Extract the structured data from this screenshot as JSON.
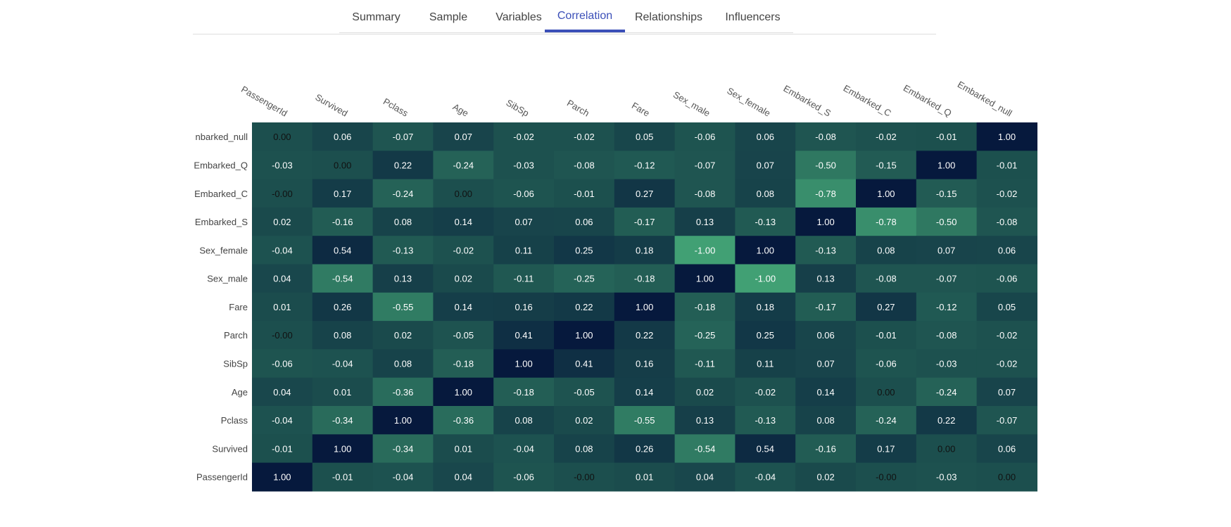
{
  "tabs": [
    {
      "label": "Summary",
      "active": false
    },
    {
      "label": "Sample",
      "active": false
    },
    {
      "label": "Variables",
      "active": false
    },
    {
      "label": "Correlation",
      "active": true
    },
    {
      "label": "Relationships",
      "active": false
    },
    {
      "label": "Influencers",
      "active": false
    }
  ],
  "colors": {
    "active_tab": "#3b4fb8",
    "scale_low": "#41a074",
    "scale_mid": "#1c4f4e",
    "scale_high": "#06193d"
  },
  "chart_data": {
    "type": "heatmap",
    "x_labels": [
      "PassengerId",
      "Survived",
      "Pclass",
      "Age",
      "SibSp",
      "Parch",
      "Fare",
      "Sex_male",
      "Sex_female",
      "Embarked_S",
      "Embarked_C",
      "Embarked_Q",
      "Embarked_null"
    ],
    "y_labels": [
      "Embarked_null",
      "Embarked_Q",
      "Embarked_C",
      "Embarked_S",
      "Sex_female",
      "Sex_male",
      "Fare",
      "Parch",
      "SibSp",
      "Age",
      "Pclass",
      "Survived",
      "PassengerId"
    ],
    "y_tick_labels": [
      "nbarked_null",
      "Embarked_Q",
      "Embarked_C",
      "Embarked_S",
      "Sex_female",
      "Sex_male",
      "Fare",
      "Parch",
      "SibSp",
      "Age",
      "Pclass",
      "Survived",
      "PassengerId"
    ],
    "value_labels": [
      [
        "0.00",
        "0.06",
        "-0.07",
        "0.07",
        "-0.02",
        "-0.02",
        "0.05",
        "-0.06",
        "0.06",
        "-0.08",
        "-0.02",
        "-0.01",
        "1.00"
      ],
      [
        "-0.03",
        "0.00",
        "0.22",
        "-0.24",
        "-0.03",
        "-0.08",
        "-0.12",
        "-0.07",
        "0.07",
        "-0.50",
        "-0.15",
        "1.00",
        "-0.01"
      ],
      [
        "-0.00",
        "0.17",
        "-0.24",
        "0.00",
        "-0.06",
        "-0.01",
        "0.27",
        "-0.08",
        "0.08",
        "-0.78",
        "1.00",
        "-0.15",
        "-0.02"
      ],
      [
        "0.02",
        "-0.16",
        "0.08",
        "0.14",
        "0.07",
        "0.06",
        "-0.17",
        "0.13",
        "-0.13",
        "1.00",
        "-0.78",
        "-0.50",
        "-0.08"
      ],
      [
        "-0.04",
        "0.54",
        "-0.13",
        "-0.02",
        "0.11",
        "0.25",
        "0.18",
        "-1.00",
        "1.00",
        "-0.13",
        "0.08",
        "0.07",
        "0.06"
      ],
      [
        "0.04",
        "-0.54",
        "0.13",
        "0.02",
        "-0.11",
        "-0.25",
        "-0.18",
        "1.00",
        "-1.00",
        "0.13",
        "-0.08",
        "-0.07",
        "-0.06"
      ],
      [
        "0.01",
        "0.26",
        "-0.55",
        "0.14",
        "0.16",
        "0.22",
        "1.00",
        "-0.18",
        "0.18",
        "-0.17",
        "0.27",
        "-0.12",
        "0.05"
      ],
      [
        "-0.00",
        "0.08",
        "0.02",
        "-0.05",
        "0.41",
        "1.00",
        "0.22",
        "-0.25",
        "0.25",
        "0.06",
        "-0.01",
        "-0.08",
        "-0.02"
      ],
      [
        "-0.06",
        "-0.04",
        "0.08",
        "-0.18",
        "1.00",
        "0.41",
        "0.16",
        "-0.11",
        "0.11",
        "0.07",
        "-0.06",
        "-0.03",
        "-0.02"
      ],
      [
        "0.04",
        "0.01",
        "-0.36",
        "1.00",
        "-0.18",
        "-0.05",
        "0.14",
        "0.02",
        "-0.02",
        "0.14",
        "0.00",
        "-0.24",
        "0.07"
      ],
      [
        "-0.04",
        "-0.34",
        "1.00",
        "-0.36",
        "0.08",
        "0.02",
        "-0.55",
        "0.13",
        "-0.13",
        "0.08",
        "-0.24",
        "0.22",
        "-0.07"
      ],
      [
        "-0.01",
        "1.00",
        "-0.34",
        "0.01",
        "-0.04",
        "0.08",
        "0.26",
        "-0.54",
        "0.54",
        "-0.16",
        "0.17",
        "0.00",
        "0.06"
      ],
      [
        "1.00",
        "-0.01",
        "-0.04",
        "0.04",
        "-0.06",
        "-0.00",
        "0.01",
        "0.04",
        "-0.04",
        "0.02",
        "-0.00",
        "-0.03",
        "0.00"
      ]
    ],
    "zlim": [
      -1,
      1
    ]
  }
}
